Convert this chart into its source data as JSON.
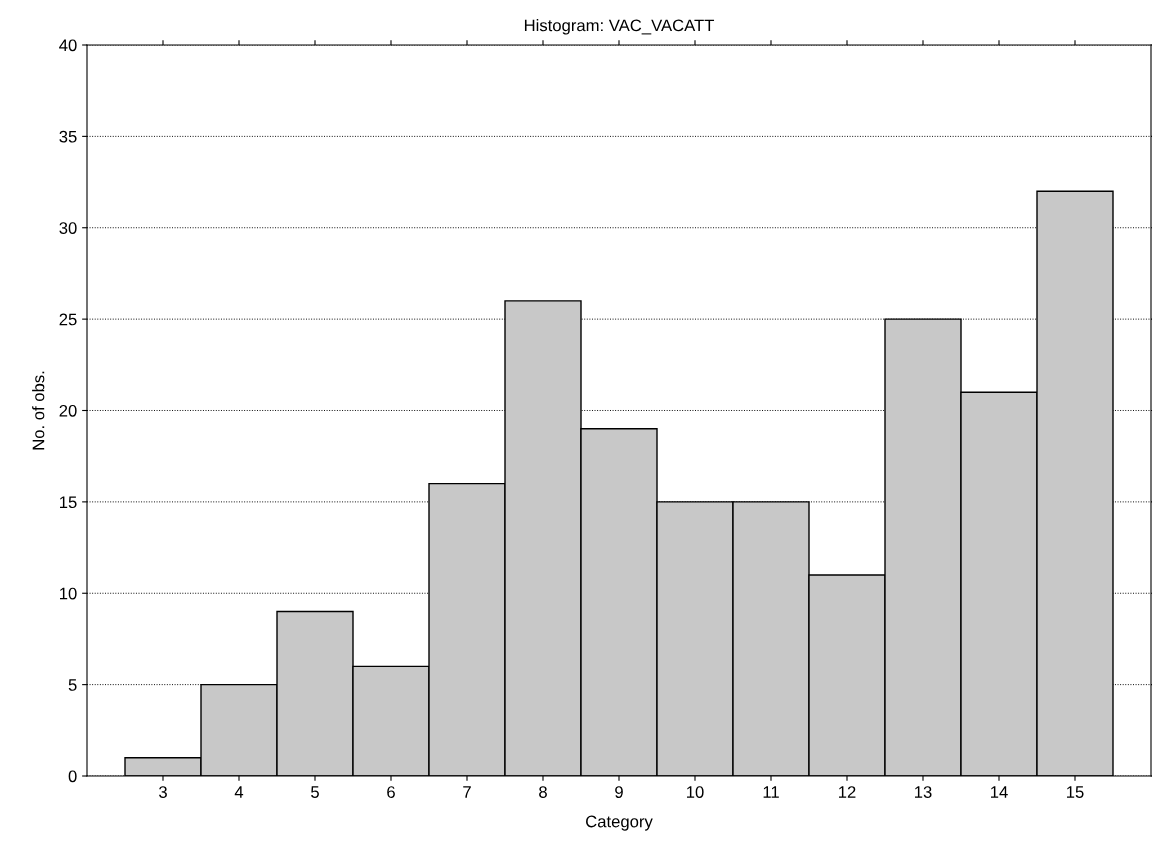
{
  "chart_data": {
    "type": "histogram",
    "title": "Histogram: VAC_VACATT",
    "xlabel": "Category",
    "ylabel": "No. of obs.",
    "bins": [
      2.5,
      3.5,
      4.5,
      5.5,
      6.5,
      7.5,
      8.5,
      9.5,
      10.5,
      11.5,
      12.5,
      13.5,
      14.5,
      15.5
    ],
    "values": [
      1,
      5,
      9,
      6,
      16,
      26,
      19,
      15,
      15,
      11,
      25,
      21,
      32
    ],
    "color": "#c8c8c8",
    "xlim": [
      2,
      16
    ],
    "xticks": [
      3,
      4,
      5,
      6,
      7,
      8,
      9,
      10,
      11,
      12,
      13,
      14,
      15
    ],
    "ylim": [
      0,
      40
    ],
    "yticks": [
      0,
      5,
      10,
      15,
      20,
      25,
      30,
      35,
      40
    ],
    "grid": "y"
  }
}
